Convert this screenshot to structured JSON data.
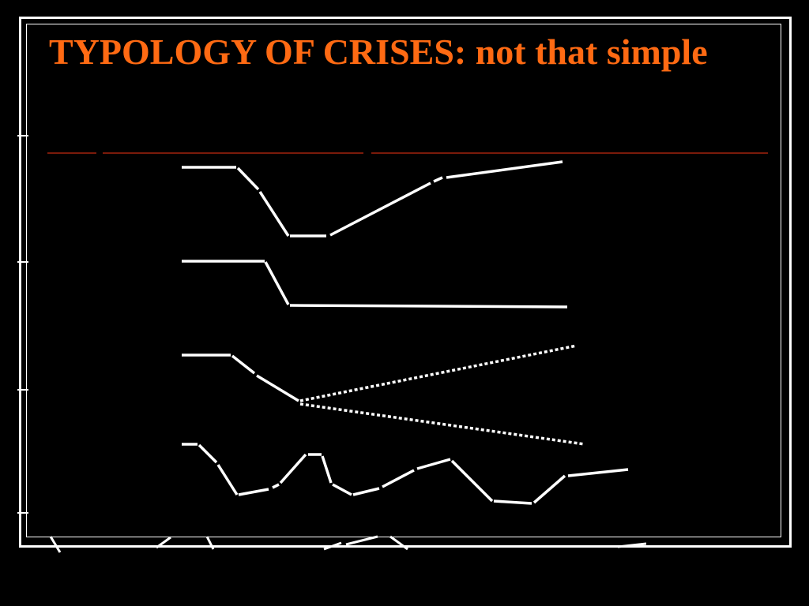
{
  "slide": {
    "title": "TYPOLOGY OF CRISES: not that simple"
  },
  "colors": {
    "background": "#000000",
    "title": "#ff6a13",
    "line": "#ffffff",
    "separator": "#7a1a0a"
  },
  "diagram": {
    "type": "crisis-typology-curves",
    "curves": [
      {
        "name": "v-shaped-recovery",
        "style": "solid"
      },
      {
        "name": "permanent-drop",
        "style": "solid"
      },
      {
        "name": "divergent-outcomes",
        "style": "solid-then-dotted-fork"
      },
      {
        "name": "repeated-crises",
        "style": "solid"
      }
    ]
  }
}
